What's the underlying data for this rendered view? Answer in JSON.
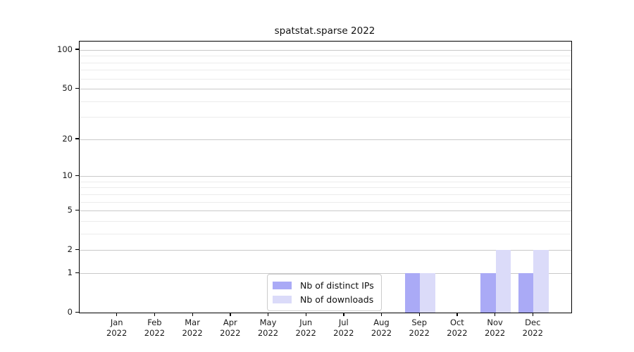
{
  "chart_data": {
    "type": "bar",
    "title": "spatstat.sparse 2022",
    "xlabel": "",
    "ylabel": "",
    "months": [
      "Jan",
      "Feb",
      "Mar",
      "Apr",
      "May",
      "Jun",
      "Jul",
      "Aug",
      "Sep",
      "Oct",
      "Nov",
      "Dec"
    ],
    "year_label": "2022",
    "series": [
      {
        "name": "Nb of distinct IPs",
        "color": "#aaaaf6",
        "values": [
          0,
          0,
          0,
          0,
          0,
          0,
          0,
          0,
          1,
          0,
          1,
          1
        ]
      },
      {
        "name": "Nb of downloads",
        "color": "#dbdbf9",
        "values": [
          0,
          0,
          0,
          0,
          0,
          0,
          0,
          0,
          1,
          0,
          2,
          2
        ]
      }
    ],
    "y_axis": {
      "scale": "log1p",
      "ticks": [
        0,
        1,
        2,
        5,
        10,
        20,
        50,
        100
      ],
      "minor_ticks": [
        3,
        4,
        6,
        7,
        8,
        9,
        30,
        40,
        60,
        70,
        80,
        90
      ],
      "max_value": 116
    },
    "legend": {
      "position": "bottom-center",
      "entries": [
        "Nb of distinct IPs",
        "Nb of downloads"
      ]
    },
    "grid": "on",
    "colors": {
      "major_grid": "#c9c9c9",
      "minor_grid": "#ececec",
      "spine": "#000000",
      "tick_text": "#1a1a1a"
    }
  }
}
